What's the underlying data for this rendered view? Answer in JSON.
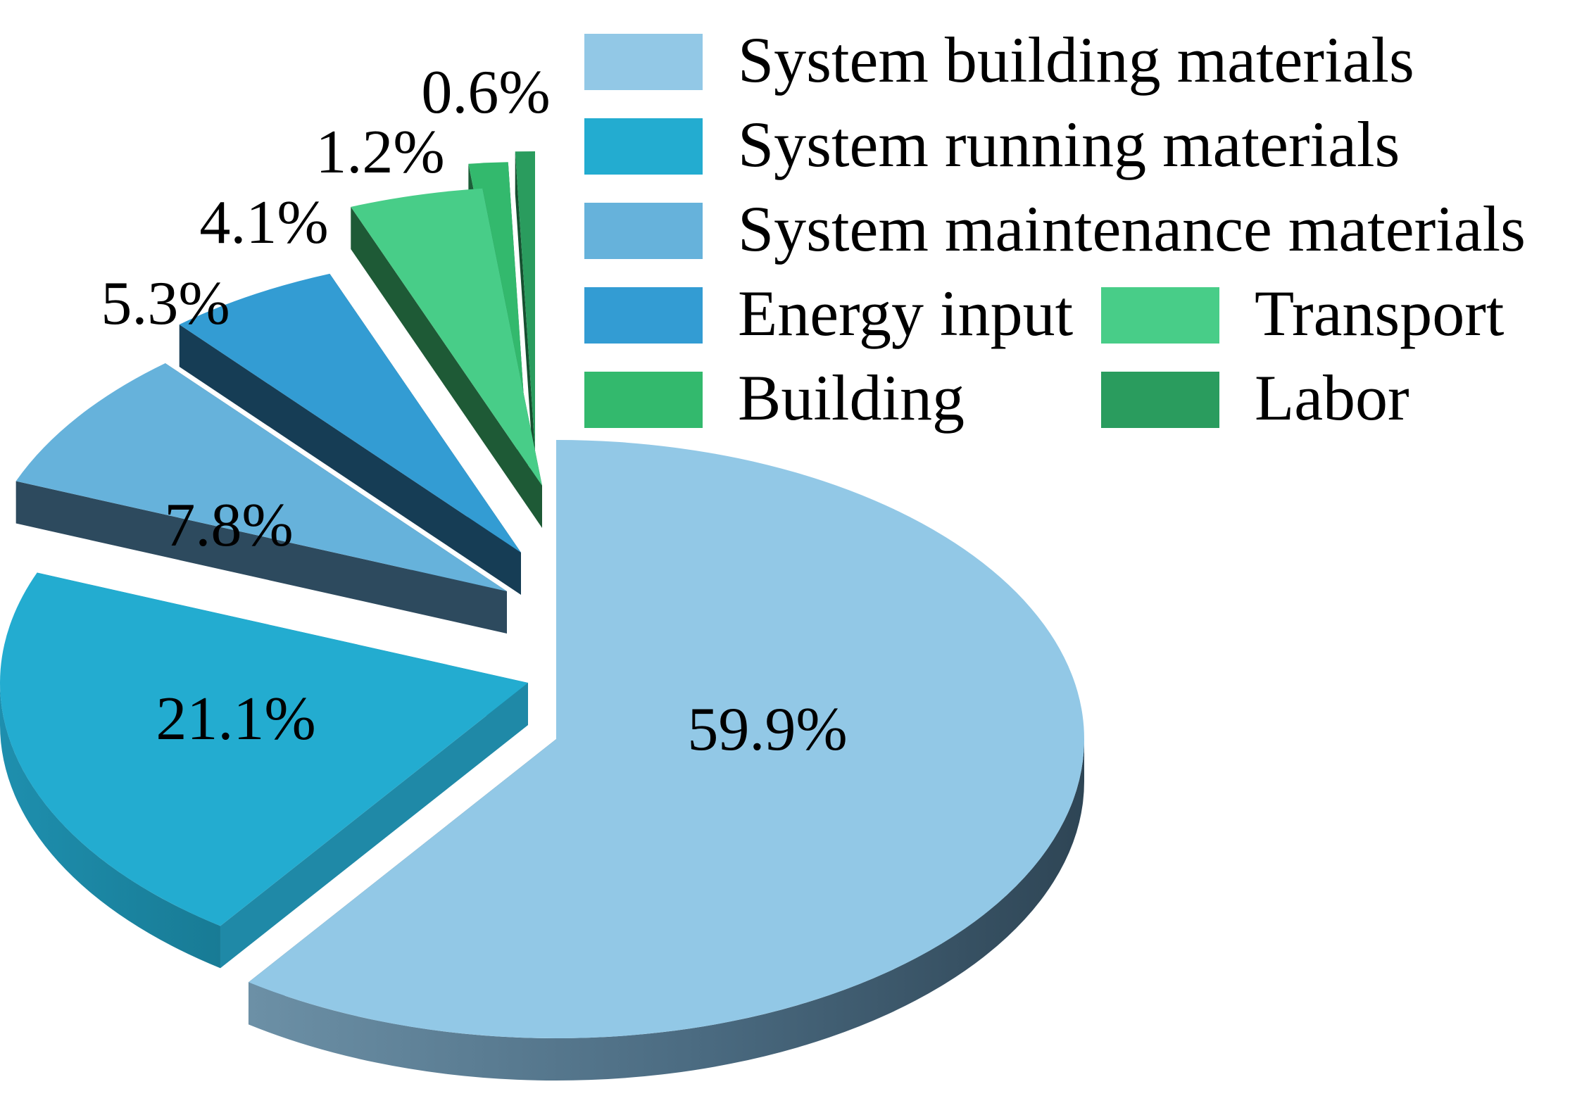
{
  "chart_data": {
    "type": "pie",
    "title": "",
    "slices": [
      {
        "name": "System building materials",
        "value": 59.9,
        "label": "59.9%",
        "color": "#92C8E6"
      },
      {
        "name": "System running materials",
        "value": 21.1,
        "label": "21.1%",
        "color": "#23ACD0"
      },
      {
        "name": "System maintenance materials",
        "value": 7.8,
        "label": "7.8%",
        "color": "#66B2DB"
      },
      {
        "name": "Energy input",
        "value": 5.3,
        "label": "5.3%",
        "color": "#339CD3"
      },
      {
        "name": "Transport",
        "value": 4.1,
        "label": "4.1%",
        "color": "#48CD88"
      },
      {
        "name": "Building",
        "value": 1.2,
        "label": "1.2%",
        "color": "#33B96D"
      },
      {
        "name": "Labor",
        "value": 0.6,
        "label": "0.6%",
        "color": "#2A9C5E"
      }
    ],
    "style": "3d-exploded",
    "legend_position": "top-right"
  }
}
